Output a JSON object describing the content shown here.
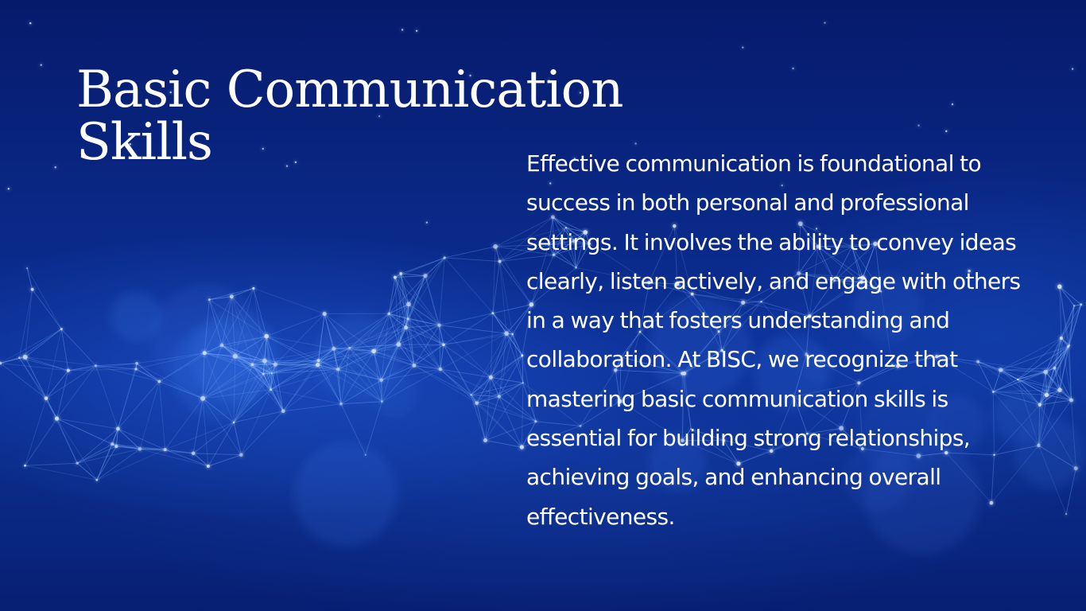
{
  "slide": {
    "title": "Basic Communication Skills",
    "body": "Effective communication is foundational to success in both personal and professional settings. It involves the ability to convey ideas clearly, listen actively, and engage with others in a way that fosters understanding and collaboration. At BISC, we recognize that mastering basic communication skills is essential for building strong relationships, achieving goals, and enhancing overall effectiveness."
  },
  "colors": {
    "background": "#0a2a8a",
    "text": "#ffffff",
    "network_glow": "#7fb4ff"
  },
  "icons": [
    "network-background-graphic"
  ]
}
